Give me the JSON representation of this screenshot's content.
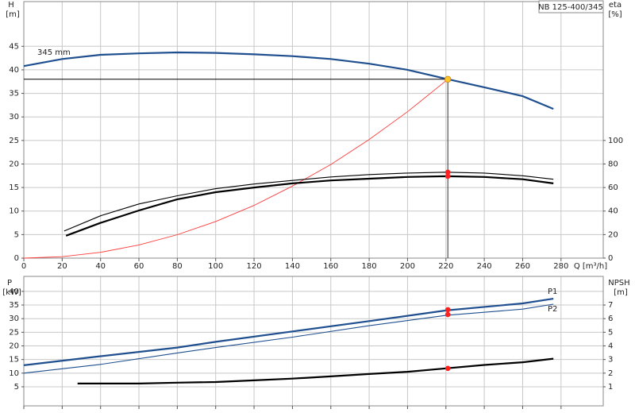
{
  "chart_data": [
    {
      "type": "line",
      "title": "NB 125-400/345",
      "xlabel": "Q [m³/h]",
      "ylabel": "H",
      "yunit": "[m]",
      "y2label": "eta",
      "y2unit": "[%]",
      "xlim": [
        0,
        302
      ],
      "xticks": [
        0,
        20,
        40,
        60,
        80,
        100,
        120,
        140,
        160,
        180,
        200,
        220,
        240,
        260,
        280
      ],
      "ylim": [
        0,
        54.5
      ],
      "yticks": [
        0,
        5,
        10,
        15,
        20,
        25,
        30,
        35,
        40,
        45
      ],
      "y2lim": [
        0,
        218
      ],
      "y2ticks": [
        0,
        20,
        40,
        60,
        80,
        100
      ],
      "grid": true,
      "show_xtick_labels": true,
      "operating_point": {
        "x": 221,
        "y": 38
      },
      "series": [
        {
          "name": "345 mm",
          "color": "#1f4f8f",
          "width": 2.2,
          "x": [
            0,
            20,
            40,
            60,
            80,
            100,
            120,
            140,
            160,
            180,
            200,
            220,
            240,
            260,
            276
          ],
          "values": [
            40.8,
            42.3,
            43.2,
            43.5,
            43.7,
            43.6,
            43.3,
            42.9,
            42.3,
            41.3,
            40.0,
            38.1,
            36.3,
            34.4,
            31.7
          ]
        },
        {
          "color": "#ff3b3b",
          "width": 0.9,
          "x": [
            0,
            20,
            40,
            60,
            80,
            100,
            120,
            140,
            160,
            180,
            200,
            221
          ],
          "values": [
            0,
            0.31,
            1.24,
            2.8,
            4.98,
            7.78,
            11.2,
            15.3,
            19.9,
            25.2,
            31.1,
            38
          ]
        },
        {
          "color": "#000000",
          "width": 1.1,
          "axis": "y2",
          "x": [
            21,
            40,
            60,
            80,
            100,
            120,
            140,
            160,
            180,
            200,
            220,
            240,
            260,
            276
          ],
          "values": [
            23,
            36,
            46,
            53,
            59,
            63,
            66,
            69,
            71,
            72.3,
            73,
            72.3,
            70,
            67
          ],
          "marker": {
            "x": 221,
            "value": 73
          }
        },
        {
          "color": "#000000",
          "width": 2.2,
          "axis": "y2",
          "x": [
            22,
            40,
            60,
            80,
            100,
            120,
            140,
            160,
            180,
            200,
            220,
            240,
            260,
            276
          ],
          "values": [
            19,
            30,
            40.5,
            50,
            56,
            60,
            63.5,
            66,
            67.5,
            69,
            69.6,
            69,
            67,
            63.5
          ],
          "marker": {
            "x": 221,
            "value": 69.6
          }
        }
      ]
    },
    {
      "type": "line",
      "ylabel": "P",
      "yunit": "[kW]",
      "y2label": "NPSH",
      "y2unit": "[m]",
      "xlim": [
        0,
        302
      ],
      "xticks": [
        0,
        20,
        40,
        60,
        80,
        100,
        120,
        140,
        160,
        180,
        200,
        220,
        240,
        260,
        280
      ],
      "ylim": [
        -2,
        45.5
      ],
      "yticks": [
        5,
        10,
        15,
        20,
        25,
        30,
        35,
        40
      ],
      "y2lim": [
        -0.4,
        9.1
      ],
      "y2ticks": [
        1,
        2,
        3,
        4,
        5,
        6,
        7
      ],
      "grid": true,
      "show_xtick_labels": false,
      "series": [
        {
          "name": "P1",
          "color": "#1f4f8f",
          "width": 2.2,
          "x": [
            0,
            40,
            80,
            100,
            140,
            180,
            220,
            260,
            276
          ],
          "values": [
            12.9,
            16.2,
            19.4,
            21.5,
            25.3,
            29.1,
            33,
            35.6,
            37.3
          ],
          "marker": {
            "x": 221,
            "value": 33.3
          }
        },
        {
          "name": "P2",
          "color": "#1f4f8f",
          "width": 1.1,
          "x": [
            0,
            40,
            80,
            100,
            140,
            180,
            220,
            260,
            276
          ],
          "values": [
            10,
            13.2,
            17.4,
            19.4,
            23.2,
            27.4,
            31.2,
            33.5,
            35.3
          ],
          "marker": {
            "x": 221,
            "value": 31.5
          }
        },
        {
          "color": "#000000",
          "width": 2.2,
          "axis": "y2",
          "x": [
            28,
            60,
            80,
            100,
            120,
            140,
            160,
            180,
            200,
            220,
            240,
            260,
            276
          ],
          "values": [
            1.24,
            1.24,
            1.3,
            1.35,
            1.47,
            1.6,
            1.76,
            1.94,
            2.1,
            2.35,
            2.6,
            2.8,
            3.06
          ],
          "marker": {
            "x": 221,
            "value": 2.35
          }
        }
      ]
    }
  ]
}
